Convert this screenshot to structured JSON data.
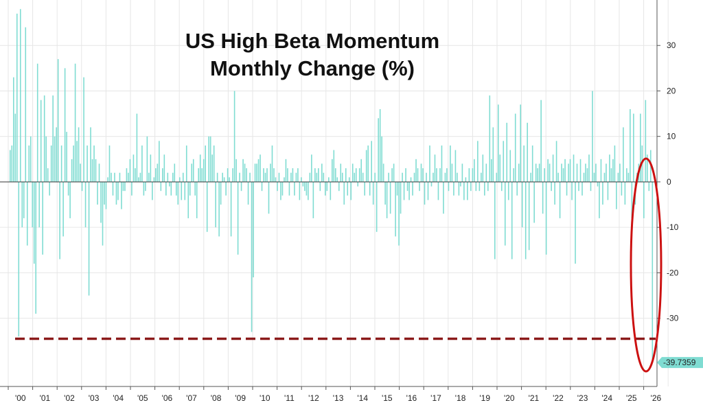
{
  "chart_data": {
    "type": "bar",
    "title_line1": "US High Beta Momentum",
    "title_line2": "Monthly Change (%)",
    "xlabel": "",
    "ylabel": "",
    "ylim": [
      -45,
      40
    ],
    "yticks": [
      30,
      20,
      10,
      0,
      -10,
      -20,
      -30
    ],
    "xtick_labels": [
      "'00",
      "'01",
      "'02",
      "'03",
      "'04",
      "'05",
      "'06",
      "'07",
      "'08",
      "'09",
      "'10",
      "'11",
      "'12",
      "'13",
      "'14",
      "'15",
      "'16",
      "'17",
      "'18",
      "'19",
      "'20",
      "'21",
      "'22",
      "'23",
      "'24",
      "'25",
      "'26"
    ],
    "bar_color": "#7fdcd2",
    "last_value_label": "-39.7359",
    "last_value_color": "#7fdcd2",
    "reference_line": {
      "value": -34.5,
      "style": "dashed",
      "color": "#8b1a1a"
    },
    "highlight_ellipse_color": "#cc1111",
    "grid": true,
    "series": [
      {
        "values": [
          7,
          8,
          23,
          15,
          37,
          -34,
          38,
          -10,
          -8,
          34,
          -14,
          8,
          10,
          -10,
          -18,
          -29,
          26,
          -10,
          18,
          -16,
          19,
          10,
          3,
          -3,
          8,
          19,
          10,
          12,
          27,
          -17,
          8,
          -12,
          25,
          11,
          -3,
          -8,
          5,
          8,
          26,
          9,
          12,
          4,
          -2,
          23,
          -10,
          8,
          -25,
          12,
          5,
          8,
          5,
          -5,
          4,
          -9,
          -14,
          -5,
          -6,
          1,
          8,
          2,
          -3,
          2,
          -5,
          -4,
          2,
          -6,
          -2,
          -2,
          3,
          2,
          5,
          -3,
          6,
          3,
          15,
          1,
          2,
          8,
          -3,
          -2,
          10,
          2,
          6,
          -4,
          1,
          3,
          4,
          9,
          -2,
          3,
          6,
          -3,
          2,
          -1,
          -3,
          2,
          4,
          -3,
          -5,
          1,
          -4,
          2,
          -4,
          8,
          -8,
          -3,
          4,
          5,
          -3,
          -8,
          3,
          6,
          3,
          5,
          8,
          -11,
          10,
          10,
          6,
          8,
          -10,
          2,
          -12,
          -5,
          2,
          1,
          -3,
          3,
          1,
          -12,
          3,
          20,
          5,
          -16,
          2,
          -2,
          5,
          4,
          3,
          -5,
          2,
          -33,
          -21,
          4,
          4,
          5,
          6,
          -2,
          3,
          2,
          3,
          -7,
          4,
          8,
          3,
          1,
          -2,
          2,
          -4,
          -3,
          1,
          5,
          3,
          -3,
          2,
          3,
          -3,
          2,
          3,
          -4,
          1,
          -1,
          -2,
          -3,
          -4,
          2,
          6,
          -8,
          3,
          2,
          3,
          -2,
          4,
          2,
          -3,
          -2,
          1,
          -4,
          5,
          7,
          3,
          1,
          -2,
          4,
          2,
          -5,
          3,
          -3,
          1,
          -4,
          4,
          2,
          3,
          -1,
          3,
          5,
          2,
          -3,
          7,
          8,
          -3,
          9,
          -5,
          2,
          -11,
          14,
          16,
          10,
          4,
          -5,
          -8,
          2,
          -7,
          3,
          4,
          -12,
          -3,
          -14,
          -7,
          2,
          -4,
          3,
          -2,
          -4,
          1,
          -3,
          2,
          5,
          3,
          -2,
          4,
          3,
          -5,
          2,
          -4,
          8,
          -1,
          2,
          6,
          3,
          -4,
          3,
          8,
          -7,
          2,
          3,
          -2,
          8,
          4,
          -3,
          7,
          2,
          -3,
          -1,
          4,
          -4,
          1,
          -4,
          3,
          -2,
          3,
          5,
          -2,
          9,
          -2,
          2,
          6,
          -3,
          4,
          -2,
          19,
          5,
          12,
          -17,
          2,
          17,
          6,
          -2,
          9,
          -14,
          13,
          -4,
          7,
          -17,
          3,
          15,
          -3,
          4,
          17,
          -10,
          8,
          -17,
          13,
          -15,
          2,
          8,
          -9,
          4,
          3,
          4,
          18,
          -7,
          3,
          -16,
          5,
          4,
          -2,
          6,
          -5,
          9,
          2,
          -8,
          4,
          3,
          5,
          -3,
          4,
          5,
          -4,
          6,
          -18,
          4,
          -2,
          5,
          -3,
          2,
          4,
          3,
          6,
          -2,
          20,
          2,
          4,
          -1,
          -8,
          5,
          -5,
          2,
          4,
          -4,
          6,
          3,
          5,
          8,
          -6,
          2,
          4,
          -3,
          12,
          -5,
          3,
          2,
          16,
          -8,
          15,
          -5,
          2,
          4,
          15,
          8,
          -8,
          18,
          6,
          -2,
          7,
          -39.7359
        ]
      }
    ]
  }
}
